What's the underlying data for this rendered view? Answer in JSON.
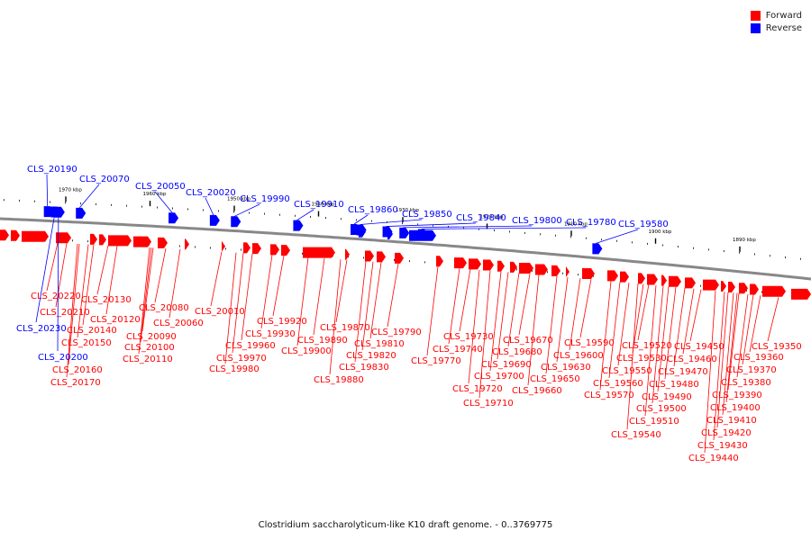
{
  "colors": {
    "forward": "#ff0000",
    "reverse": "#0000ff",
    "axis": "#888888",
    "tick": "#000000"
  },
  "legend": [
    {
      "label": "Forward",
      "color": "#ff0000"
    },
    {
      "label": "Reverse",
      "color": "#0000ff"
    }
  ],
  "caption": "Clostridium saccharolyticum-like K10 draft genome. - 0..3769775",
  "ticks": [
    {
      "label": "1970 kbp",
      "kbp": 1970
    },
    {
      "label": "1960 kbp",
      "kbp": 1960
    },
    {
      "label": "1950 kbp",
      "kbp": 1950
    },
    {
      "label": "1940 kbp",
      "kbp": 1940
    },
    {
      "label": "1930 kbp",
      "kbp": 1930
    },
    {
      "label": "1920 kbp",
      "kbp": 1920
    },
    {
      "label": "1910 kbp",
      "kbp": 1910
    },
    {
      "label": "1900 kbp",
      "kbp": 1900
    },
    {
      "label": "1890 kbp",
      "kbp": 1890
    }
  ],
  "reverse_genes": [
    {
      "label": "CLS_20190",
      "kbp": 1972.6
    },
    {
      "label": "CLS_20070",
      "kbp": 1968.8
    },
    {
      "label": "CLS_20050",
      "kbp": 1957.8
    },
    {
      "label": "CLS_20020",
      "kbp": 1952.9
    },
    {
      "label": "CLS_19990",
      "kbp": 1950.4
    },
    {
      "label": "CLS_19910",
      "kbp": 1943.0
    },
    {
      "label": "CLS_19860",
      "kbp": 1936.2
    },
    {
      "label": "CLS_19850",
      "kbp": 1935.5
    },
    {
      "label": "CLS_19840",
      "kbp": 1932.4
    },
    {
      "label": "CLS_19800",
      "kbp": 1930.4
    },
    {
      "label": "CLS_19780",
      "kbp": 1928.2
    },
    {
      "label": "CLS_19580",
      "kbp": 1907.5
    },
    {
      "label": "CLS_20230",
      "kbp": 1971.8
    },
    {
      "label": "CLS_20200",
      "kbp": 1971.3
    }
  ],
  "forward_labels": [
    "CLS_20220",
    "CLS_20210",
    "CLS_20140",
    "CLS_20150",
    "CLS_20160",
    "CLS_20170",
    "CLS_20130",
    "CLS_20120",
    "CLS_20080",
    "CLS_20090",
    "CLS_20100",
    "CLS_20110",
    "CLS_20060",
    "CLS_20010",
    "CLS_19920",
    "CLS_19930",
    "CLS_19960",
    "CLS_19970",
    "CLS_19980",
    "CLS_19870",
    "CLS_19890",
    "CLS_19900",
    "CLS_19790",
    "CLS_19810",
    "CLS_19820",
    "CLS_19830",
    "CLS_19880",
    "CLS_19730",
    "CLS_19740",
    "CLS_19770",
    "CLS_19670",
    "CLS_19680",
    "CLS_19690",
    "CLS_19700",
    "CLS_19720",
    "CLS_19710",
    "CLS_19590",
    "CLS_19600",
    "CLS_19630",
    "CLS_19650",
    "CLS_19660",
    "CLS_19520",
    "CLS_19530",
    "CLS_19550",
    "CLS_19560",
    "CLS_19570",
    "CLS_19450",
    "CLS_19460",
    "CLS_19470",
    "CLS_19480",
    "CLS_19490",
    "CLS_19500",
    "CLS_19510",
    "CLS_19540",
    "CLS_19350",
    "CLS_19360",
    "CLS_19370",
    "CLS_19380",
    "CLS_19390",
    "CLS_19400",
    "CLS_19410",
    "CLS_19420",
    "CLS_19430",
    "CLS_19440"
  ]
}
